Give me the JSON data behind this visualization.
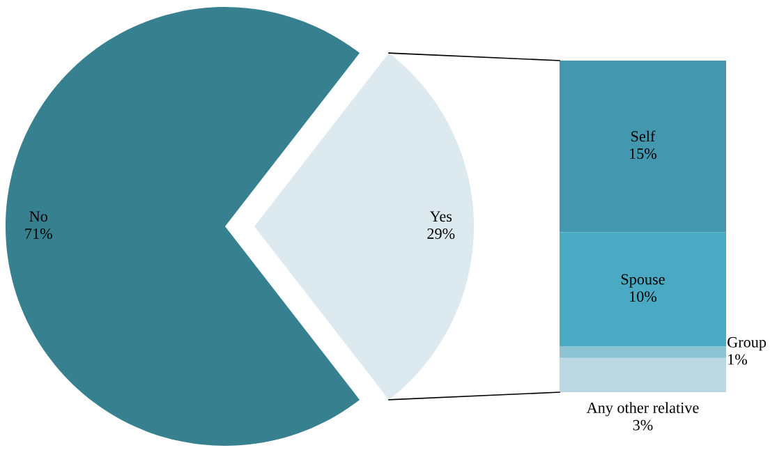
{
  "chart_data": [
    {
      "type": "pie",
      "categories": [
        "No",
        "Yes"
      ],
      "values": [
        71,
        29
      ],
      "colors": [
        "#37808f",
        "#dce9ef"
      ],
      "value_labels": [
        "71%",
        "29%"
      ]
    },
    {
      "type": "bar",
      "stacked": true,
      "categories": [
        null
      ],
      "series": [
        {
          "name": "Any other relative",
          "color": "#bcd8e2",
          "values": [
            3
          ],
          "value_labels": [
            "3%"
          ]
        },
        {
          "name": "Group",
          "color": "#8cc3d3",
          "values": [
            1
          ],
          "value_labels": [
            "1%"
          ]
        },
        {
          "name": "Spouse",
          "color": "#4aaac4",
          "values": [
            10
          ],
          "value_labels": [
            "10%"
          ]
        },
        {
          "name": "Self",
          "color": "#4397ae",
          "values": [
            15
          ],
          "value_labels": [
            "15%"
          ]
        }
      ]
    }
  ]
}
